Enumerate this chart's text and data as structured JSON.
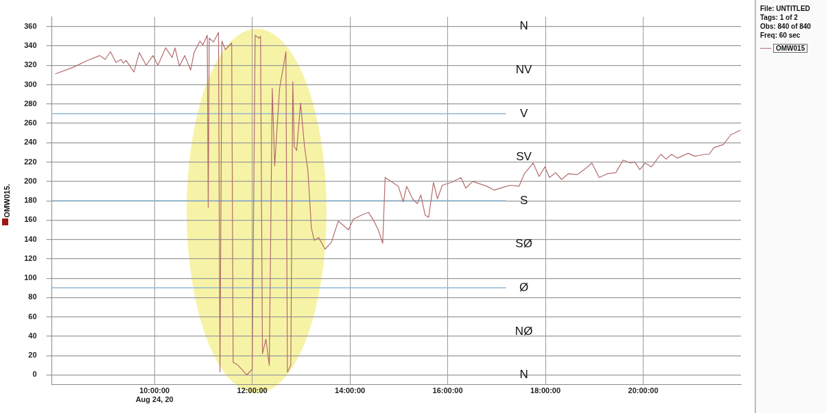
{
  "chart_data": {
    "type": "line",
    "ylabel": "OMW015.",
    "annotations": [
      "File: UNTITLED",
      "Tags: 1 of 2",
      "Obs: 840 of 840",
      "Freq: 60 sec",
      "N",
      "NV",
      "V",
      "SV",
      "S",
      "SØ",
      "Ø",
      "NØ",
      "N"
    ],
    "x": [
      7.97,
      8.34,
      8.63,
      8.88,
      8.99,
      9.1,
      9.21,
      9.32,
      9.36,
      9.42,
      9.58,
      9.69,
      9.83,
      9.97,
      10.07,
      10.23,
      10.36,
      10.42,
      10.51,
      10.62,
      10.74,
      10.81,
      10.93,
      10.99,
      11.08,
      11.1,
      11.12,
      11.21,
      11.31,
      11.34,
      11.38,
      11.45,
      11.58,
      11.61,
      11.71,
      11.89,
      12.0,
      12.06,
      12.14,
      12.17,
      12.21,
      12.28,
      12.35,
      12.41,
      12.46,
      12.56,
      12.66,
      12.69,
      12.72,
      12.79,
      12.83,
      12.86,
      12.91,
      12.99,
      13.07,
      13.14,
      13.21,
      13.27,
      13.36,
      13.49,
      13.62,
      13.76,
      13.97,
      14.07,
      14.23,
      14.38,
      14.48,
      14.58,
      14.67,
      14.72,
      14.87,
      14.99,
      15.09,
      15.16,
      15.28,
      15.38,
      15.45,
      15.54,
      15.61,
      15.71,
      15.79,
      15.89,
      16.08,
      16.27,
      16.37,
      16.51,
      16.8,
      16.95,
      17.14,
      17.28,
      17.46,
      17.57,
      17.75,
      17.87,
      17.99,
      18.08,
      18.21,
      18.33,
      18.47,
      18.65,
      18.84,
      18.95,
      19.1,
      19.27,
      19.44,
      19.59,
      19.74,
      19.83,
      19.93,
      20.04,
      20.17,
      20.36,
      20.47,
      20.58,
      20.7,
      20.92,
      21.06,
      21.26,
      21.35,
      21.45,
      21.64,
      21.79,
      21.99
    ],
    "series": [
      {
        "name": "OMW015",
        "color": "#b36b6b",
        "values": [
          311,
          318,
          325,
          330,
          326,
          334,
          323,
          326,
          322,
          325,
          313,
          333,
          320,
          330,
          320,
          338,
          328,
          338,
          319,
          330,
          315,
          333,
          345,
          341,
          351,
          173,
          348,
          344,
          354,
          3,
          345,
          336,
          343,
          13,
          10,
          0,
          6,
          351,
          348,
          350,
          22,
          37,
          10,
          296,
          216,
          296,
          325,
          334,
          3,
          10,
          303,
          236,
          232,
          281,
          236,
          211,
          152,
          139,
          142,
          130,
          137,
          159,
          150,
          161,
          165,
          168,
          160,
          150,
          136,
          204,
          199,
          195,
          179,
          195,
          182,
          177,
          186,
          165,
          163,
          199,
          182,
          196,
          199,
          204,
          193,
          200,
          195,
          191,
          194,
          196,
          195,
          208,
          219,
          205,
          215,
          204,
          209,
          202,
          208,
          207,
          214,
          219,
          204,
          208,
          209,
          222,
          219,
          220,
          212,
          219,
          215,
          228,
          223,
          228,
          224,
          229,
          226,
          228,
          228,
          235,
          238,
          248,
          253
        ]
      }
    ],
    "xlim": [
      7.9,
      22
    ],
    "xticks": [
      {
        "value": 10,
        "label": "10:00:00\nAug 24, 20"
      },
      {
        "value": 12,
        "label": "12:00:00"
      },
      {
        "value": 14,
        "label": "14:00:00"
      },
      {
        "value": 16,
        "label": "16:00:00"
      },
      {
        "value": 18,
        "label": "18:00:00"
      },
      {
        "value": 20,
        "label": "20:00:00"
      }
    ],
    "ylim": [
      -10,
      370
    ],
    "yticks": [
      0,
      20,
      40,
      60,
      80,
      100,
      120,
      140,
      160,
      180,
      200,
      220,
      240,
      260,
      280,
      300,
      320,
      340,
      360
    ],
    "ref_lines": [
      {
        "axis": "y",
        "value": 270,
        "color": "#8fb6d2"
      },
      {
        "axis": "y",
        "value": 180,
        "color": "#8fb6d2"
      },
      {
        "axis": "y",
        "value": 90,
        "color": "#8fb6d2"
      }
    ],
    "grid": true,
    "legend": "top right"
  }
}
